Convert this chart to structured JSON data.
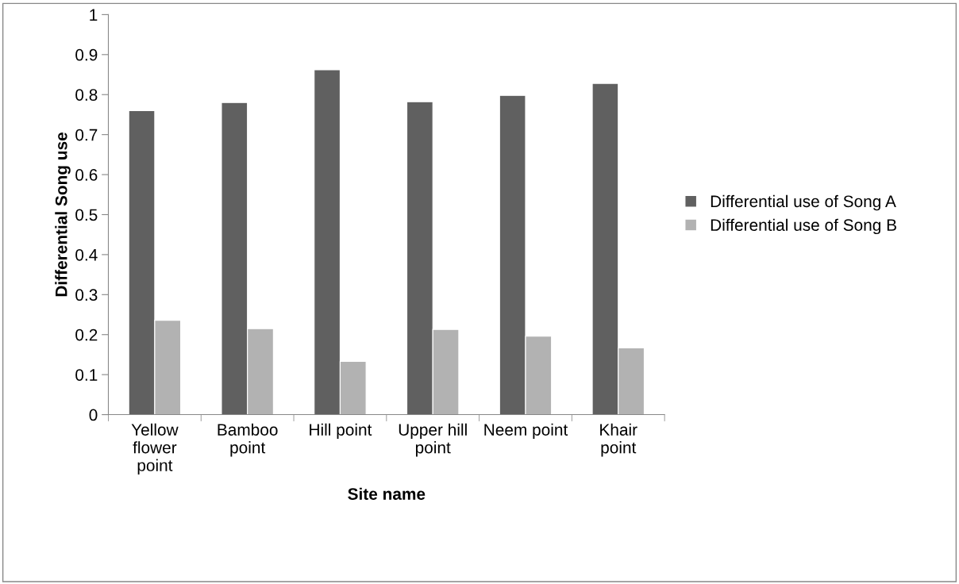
{
  "chart_data": {
    "type": "bar",
    "xlabel": "Site name",
    "ylabel": "Differential Song use",
    "categories": [
      "Yellow flower point",
      "Bamboo point",
      "Hill point",
      "Upper hill point",
      "Neem point",
      "Khair point"
    ],
    "series": [
      {
        "name": "Differential use of Song A",
        "color": "#606060",
        "values": [
          0.76,
          0.78,
          0.862,
          0.782,
          0.798,
          0.828
        ]
      },
      {
        "name": "Differential use of Song B",
        "color": "#b2b2b2",
        "values": [
          0.236,
          0.215,
          0.133,
          0.213,
          0.196,
          0.167
        ]
      }
    ],
    "ylim": [
      0,
      1
    ],
    "yticks": [
      0,
      0.1,
      0.2,
      0.3,
      0.4,
      0.5,
      0.6,
      0.7,
      0.8,
      0.9,
      1
    ],
    "grid": false,
    "legend": "right"
  }
}
